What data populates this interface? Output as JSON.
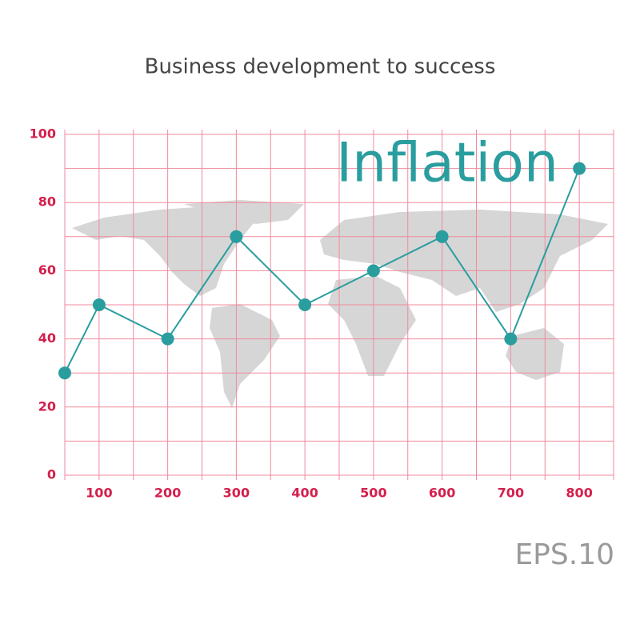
{
  "chart_data": {
    "type": "line",
    "title": "Business development to success",
    "annotation": "Inflation",
    "footer": "EPS.10",
    "x": [
      50,
      100,
      200,
      300,
      400,
      500,
      600,
      700,
      800
    ],
    "series": [
      {
        "name": "Inflation",
        "color": "#2a9d9f",
        "values": [
          30,
          50,
          40,
          70,
          50,
          60,
          70,
          40,
          90
        ]
      }
    ],
    "xlim": [
      50,
      850
    ],
    "xticks": [
      100,
      200,
      300,
      400,
      500,
      600,
      700,
      800
    ],
    "ylim": [
      0,
      100
    ],
    "yticks": [
      0,
      20,
      40,
      60,
      80,
      100
    ],
    "xgrid": [
      50,
      100,
      150,
      200,
      250,
      300,
      350,
      400,
      450,
      500,
      550,
      600,
      650,
      700,
      750,
      800,
      850
    ],
    "ygrid": [
      0,
      10,
      20,
      30,
      40,
      50,
      60,
      70,
      80,
      90,
      100
    ],
    "grid_color": "#f08a9c"
  }
}
